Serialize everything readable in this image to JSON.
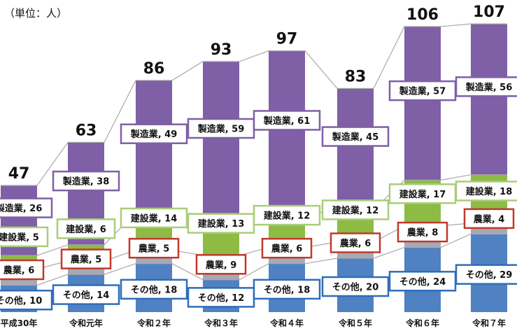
{
  "unit_label": "（単位：人）",
  "colors": {
    "sonota": "#4f81c3",
    "nogyo": "#a6aab5",
    "kensetsu": "#8dbb44",
    "seizo": "#7f5fa6",
    "sonota_border": "#2e6eb8",
    "nogyo_border": "#c0392b",
    "kensetsu_border": "#a9cd7a",
    "seizo_border": "#7f5fa6",
    "line": "#aaaaaa"
  },
  "chart_data": {
    "type": "bar",
    "stacked": true,
    "categories": [
      "平成30年",
      "令和元年",
      "令和２年",
      "令和３年",
      "令和４年",
      "令和５年",
      "令和６年",
      "令和７年"
    ],
    "totals": [
      47,
      63,
      86,
      93,
      97,
      83,
      106,
      107
    ],
    "series": [
      {
        "key": "sonota",
        "name": "その他",
        "values": [
          10,
          14,
          18,
          12,
          18,
          20,
          24,
          29
        ]
      },
      {
        "key": "nogyo",
        "name": "農業",
        "values": [
          6,
          5,
          5,
          9,
          6,
          6,
          8,
          4
        ]
      },
      {
        "key": "kensetsu",
        "name": "建設業",
        "values": [
          5,
          6,
          14,
          13,
          12,
          12,
          17,
          18
        ]
      },
      {
        "key": "seizo",
        "name": "製造業",
        "values": [
          26,
          38,
          49,
          59,
          61,
          45,
          57,
          56
        ]
      }
    ],
    "ylim": [
      0,
      110
    ]
  }
}
